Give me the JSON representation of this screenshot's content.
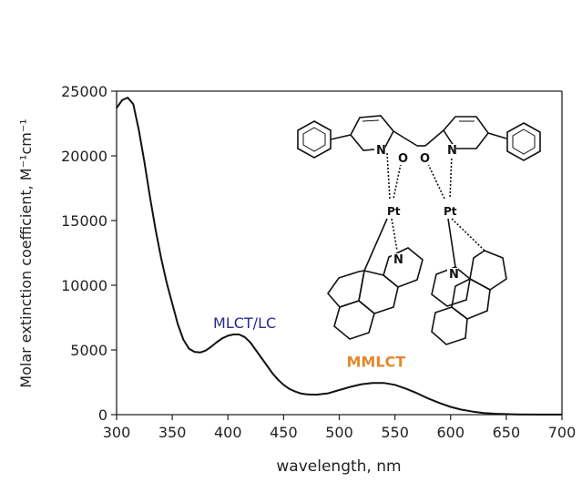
{
  "chart_data": {
    "type": "line",
    "xlabel": "wavelength, nm",
    "ylabel": "Molar extinction coefficient, M⁻¹cm⁻¹",
    "xlim": [
      300,
      700
    ],
    "ylim": [
      0,
      25000
    ],
    "xticks": [
      300,
      350,
      400,
      450,
      500,
      550,
      600,
      650,
      700
    ],
    "yticks": [
      0,
      5000,
      10000,
      15000,
      20000,
      25000
    ],
    "grid": false,
    "legend": "none",
    "series": [
      {
        "color": "#111111",
        "x": [
          300,
          305,
          310,
          315,
          320,
          325,
          330,
          335,
          340,
          345,
          350,
          355,
          360,
          365,
          370,
          375,
          380,
          385,
          390,
          395,
          400,
          405,
          410,
          415,
          420,
          425,
          430,
          435,
          440,
          445,
          450,
          455,
          460,
          465,
          470,
          475,
          480,
          490,
          500,
          510,
          520,
          530,
          540,
          550,
          560,
          570,
          580,
          590,
          600,
          610,
          620,
          630,
          640,
          650,
          660,
          680,
          700
        ],
        "y": [
          23700,
          24300,
          24500,
          24000,
          22000,
          19500,
          16800,
          14300,
          12100,
          10200,
          8600,
          7000,
          5800,
          5100,
          4850,
          4800,
          4950,
          5250,
          5600,
          5900,
          6100,
          6200,
          6200,
          6000,
          5600,
          5000,
          4400,
          3800,
          3200,
          2700,
          2300,
          2000,
          1800,
          1650,
          1580,
          1550,
          1550,
          1650,
          1900,
          2150,
          2350,
          2450,
          2450,
          2300,
          2000,
          1650,
          1250,
          900,
          600,
          380,
          230,
          130,
          70,
          40,
          20,
          10,
          5
        ]
      }
    ],
    "annotations": [
      {
        "text": "MLCT/LC",
        "x": 415,
        "y": 6700,
        "color": "#2a2a8c"
      },
      {
        "text": "MMLCT",
        "x": 533,
        "y": 3700,
        "color": "#e08a2c"
      }
    ],
    "inset": {
      "atom_labels": [
        "N",
        "O",
        "O",
        "N",
        "Pt",
        "Pt",
        "N",
        "N"
      ]
    }
  }
}
